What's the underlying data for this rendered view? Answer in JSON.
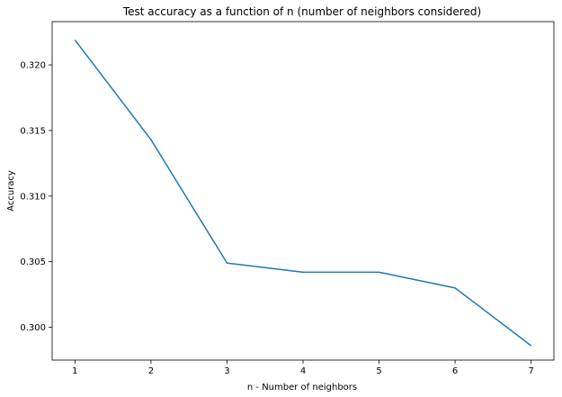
{
  "chart_data": {
    "type": "line",
    "title": "Test accuracy as a function of n (number of neighbors considered)",
    "xlabel": "n - Number of neighbors",
    "ylabel": "Accuracy",
    "x": [
      1,
      2,
      3,
      4,
      5,
      6,
      7
    ],
    "series": [
      {
        "values": [
          0.3219,
          0.3143,
          0.3049,
          0.3042,
          0.3042,
          0.303,
          0.2986
        ],
        "color": "#1f77b4"
      }
    ],
    "xlim": [
      0.7,
      7.3
    ],
    "ylim": [
      0.2975,
      0.3233
    ],
    "xticks": [
      1,
      2,
      3,
      4,
      5,
      6,
      7
    ],
    "xtick_labels": [
      "1",
      "2",
      "3",
      "4",
      "5",
      "6",
      "7"
    ],
    "yticks": [
      0.3,
      0.305,
      0.31,
      0.315,
      0.32
    ],
    "ytick_labels": [
      "0.300",
      "0.305",
      "0.310",
      "0.315",
      "0.320"
    ],
    "grid": false,
    "legend": false
  }
}
